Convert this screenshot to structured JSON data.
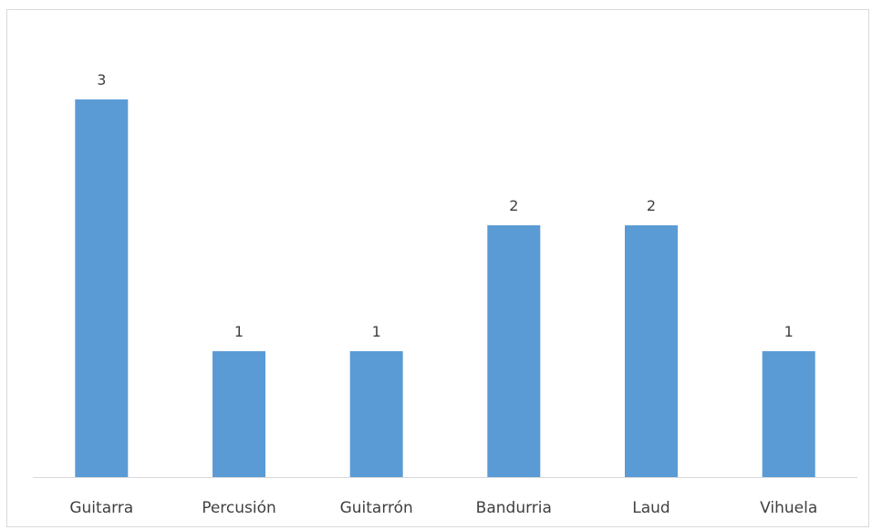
{
  "chart_data": {
    "type": "bar",
    "title": "",
    "xlabel": "",
    "ylabel": "",
    "categories": [
      "Guitarra",
      "Percusión",
      "Guitarrón",
      "Bandurria",
      "Laud",
      "Vihuela"
    ],
    "values": [
      3,
      1,
      1,
      2,
      2,
      1
    ],
    "ylim": [
      0,
      3.3
    ],
    "grid": false,
    "legend": "none",
    "data_labels": true,
    "bar_color": "#5b9bd5",
    "axis_color": "#d9d9d9",
    "text_color": "#404040"
  }
}
